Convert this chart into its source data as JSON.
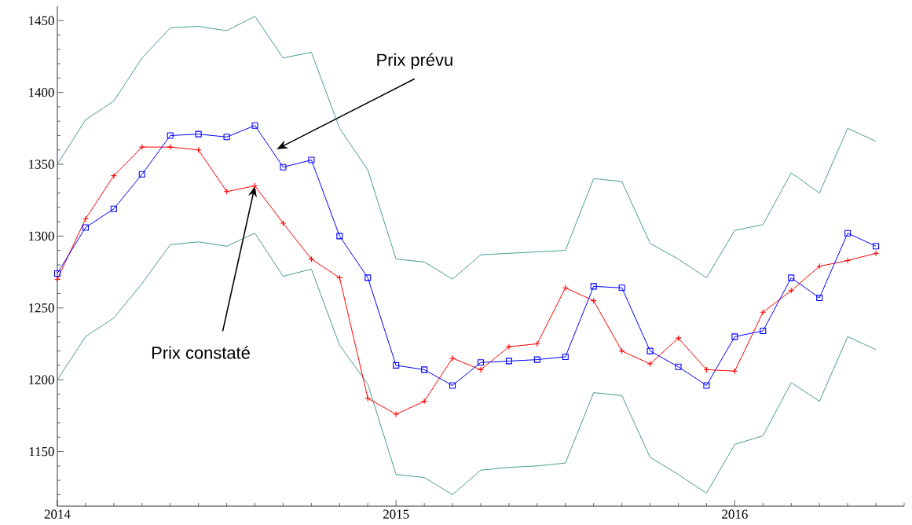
{
  "chart_data": {
    "type": "line",
    "x": [
      "2014-01",
      "2014-02",
      "2014-03",
      "2014-04",
      "2014-05",
      "2014-06",
      "2014-07",
      "2014-08",
      "2014-09",
      "2014-10",
      "2014-11",
      "2014-12",
      "2015-01",
      "2015-02",
      "2015-03",
      "2015-04",
      "2015-05",
      "2015-06",
      "2015-07",
      "2015-08",
      "2015-09",
      "2015-10",
      "2015-11",
      "2015-12",
      "2016-01",
      "2016-02",
      "2016-03",
      "2016-04",
      "2016-05",
      "2016-06"
    ],
    "series": [
      {
        "color": "#4a9a96",
        "marker": "none",
        "values": [
          1350,
          1381,
          1394,
          1424,
          1445,
          1446,
          1443,
          1453,
          1424,
          1428,
          1375,
          1346,
          1284,
          1282,
          1270,
          1287,
          1288,
          1289,
          1290,
          1340,
          1338,
          1295,
          1284,
          1271,
          1304,
          1308,
          1344,
          1330,
          1375,
          1366
        ]
      },
      {
        "color": "#4a9a96",
        "marker": "none",
        "values": [
          1200,
          1230,
          1243,
          1267,
          1294,
          1296,
          1293,
          1302,
          1272,
          1277,
          1224,
          1197,
          1134,
          1132,
          1120,
          1137,
          1139,
          1140,
          1142,
          1191,
          1189,
          1146,
          1134,
          1121,
          1155,
          1161,
          1198,
          1185,
          1230,
          1221
        ]
      },
      {
        "color": "#ff0000",
        "marker": "cross",
        "values": [
          1270,
          1312,
          1342,
          1362,
          1362,
          1360,
          1331,
          1335,
          1309,
          1284,
          1271,
          1187,
          1176,
          1185,
          1215,
          1207,
          1223,
          1225,
          1264,
          1255,
          1220,
          1211,
          1229,
          1207,
          1206,
          1247,
          1262,
          1279,
          1283,
          1288
        ]
      },
      {
        "color": "#0000ff",
        "marker": "square",
        "values": [
          1274,
          1306,
          1319,
          1343,
          1370,
          1371,
          1369,
          1377,
          1348,
          1353,
          1300,
          1271,
          1210,
          1207,
          1196,
          1212,
          1213,
          1214,
          1216,
          1265,
          1264,
          1220,
          1209,
          1196,
          1230,
          1234,
          1271,
          1257,
          1302,
          1293
        ]
      }
    ],
    "xlim": [
      "2014-01",
      "2016-07"
    ],
    "xticks": [
      "2014",
      "2015",
      "2016",
      {
        "value": "2014-02",
        "label": null
      },
      {
        "value": "2014-03",
        "label": null
      },
      {
        "value": "2014-04",
        "label": null
      },
      {
        "value": "2014-05",
        "label": null
      },
      {
        "value": "2014-06",
        "label": null
      },
      {
        "value": "2014-07",
        "label": null
      },
      {
        "value": "2014-08",
        "label": null
      },
      {
        "value": "2014-09",
        "label": null
      },
      {
        "value": "2014-10",
        "label": null
      },
      {
        "value": "2014-11",
        "label": null
      },
      {
        "value": "2014-12",
        "label": null
      },
      {
        "value": "2015-02",
        "label": null
      },
      {
        "value": "2015-03",
        "label": null
      },
      {
        "value": "2015-04",
        "label": null
      },
      {
        "value": "2015-05",
        "label": null
      },
      {
        "value": "2015-06",
        "label": null
      },
      {
        "value": "2015-07",
        "label": null
      },
      {
        "value": "2015-08",
        "label": null
      },
      {
        "value": "2015-09",
        "label": null
      },
      {
        "value": "2015-10",
        "label": null
      },
      {
        "value": "2015-11",
        "label": null
      },
      {
        "value": "2015-12",
        "label": null
      },
      {
        "value": "2016-02",
        "label": null
      },
      {
        "value": "2016-03",
        "label": null
      },
      {
        "value": "2016-04",
        "label": null
      },
      {
        "value": "2016-05",
        "label": null
      },
      {
        "value": "2016-06",
        "label": null
      },
      {
        "value": "2016-07",
        "label": null
      }
    ],
    "ylim": [
      1112,
      1460
    ],
    "yticks": [
      1150,
      1200,
      1250,
      1300,
      1350,
      1400,
      1450,
      {
        "value": 1120,
        "label": null
      },
      {
        "value": 1130,
        "label": null
      },
      {
        "value": 1140,
        "label": null
      },
      {
        "value": 1160,
        "label": null
      },
      {
        "value": 1170,
        "label": null
      },
      {
        "value": 1180,
        "label": null
      },
      {
        "value": 1190,
        "label": null
      },
      {
        "value": 1210,
        "label": null
      },
      {
        "value": 1220,
        "label": null
      },
      {
        "value": 1230,
        "label": null
      },
      {
        "value": 1240,
        "label": null
      },
      {
        "value": 1260,
        "label": null
      },
      {
        "value": 1270,
        "label": null
      },
      {
        "value": 1280,
        "label": null
      },
      {
        "value": 1290,
        "label": null
      },
      {
        "value": 1310,
        "label": null
      },
      {
        "value": 1320,
        "label": null
      },
      {
        "value": 1330,
        "label": null
      },
      {
        "value": 1340,
        "label": null
      },
      {
        "value": 1360,
        "label": null
      },
      {
        "value": 1370,
        "label": null
      },
      {
        "value": 1380,
        "label": null
      },
      {
        "value": 1390,
        "label": null
      },
      {
        "value": 1410,
        "label": null
      },
      {
        "value": 1420,
        "label": null
      },
      {
        "value": 1430,
        "label": null
      },
      {
        "value": 1440,
        "label": null
      }
    ],
    "grid": false,
    "annotations": [
      "Prix prévu",
      {
        "text": "Prix constaté",
        "x": "2014-08",
        "y": 1335
      }
    ]
  }
}
